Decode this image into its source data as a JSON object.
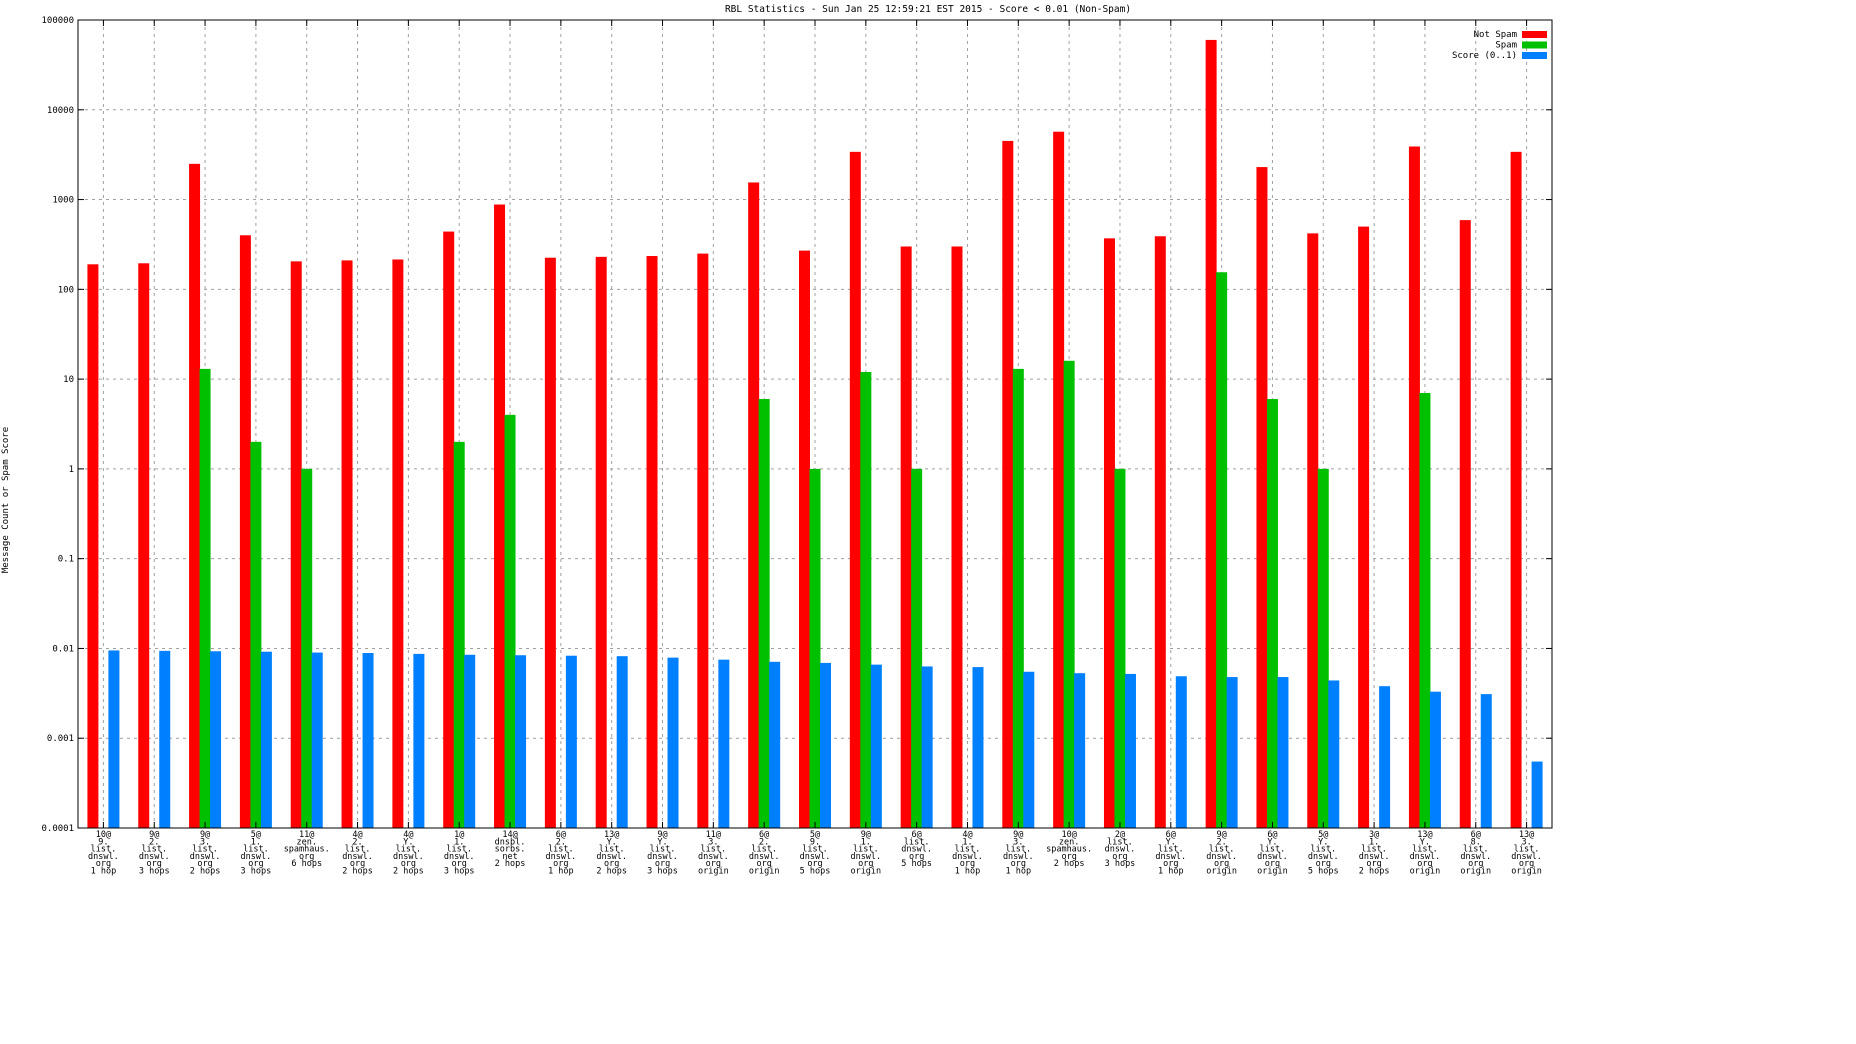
{
  "chart_data": {
    "type": "bar",
    "title": "RBL Statistics - Sun Jan 25 12:59:21 EST 2015 - Score < 0.01 (Non-Spam)",
    "xlabel": "",
    "ylabel": "Message Count or Spam Score",
    "yscale": "log",
    "ylim": [
      0.0001,
      100000
    ],
    "yticks": [
      "0.0001",
      "0.001",
      "0.01",
      "0.1",
      "1",
      "10",
      "100",
      "1000",
      "10000",
      "100000"
    ],
    "grid": true,
    "legend_position": "top-right",
    "colors": {
      "not_spam": "#ff0000",
      "spam": "#00c000",
      "score": "#0080ff"
    },
    "categories": [
      [
        "10@",
        "9.",
        "list.",
        "dnswl.",
        "org",
        "1 hop"
      ],
      [
        "9@",
        "2.",
        "list.",
        "dnswl.",
        "org",
        "3 hops"
      ],
      [
        "9@",
        "3.",
        "list.",
        "dnswl.",
        "org",
        "2 hops"
      ],
      [
        "5@",
        "1.",
        "list.",
        "dnswl.",
        "org",
        "3 hops"
      ],
      [
        "11@",
        "zen.",
        "spamhaus.",
        "org",
        "6 hops"
      ],
      [
        "4@",
        "2.",
        "list.",
        "dnswl.",
        "org",
        "2 hops"
      ],
      [
        "4@",
        "Y.",
        "list.",
        "dnswl.",
        "org",
        "2 hops"
      ],
      [
        "1@",
        "1.",
        "list.",
        "dnswl.",
        "org",
        "3 hops"
      ],
      [
        "14@",
        "dnsbl.",
        "sorbs.",
        "net",
        "2 hops"
      ],
      [
        "6@",
        "2.",
        "list.",
        "dnswl.",
        "org",
        "1 hop"
      ],
      [
        "13@",
        "Y.",
        "list.",
        "dnswl.",
        "org",
        "2 hops"
      ],
      [
        "9@",
        "Y.",
        "list.",
        "dnswl.",
        "org",
        "3 hops"
      ],
      [
        "11@",
        "3.",
        "list.",
        "dnswl.",
        "org",
        "origin"
      ],
      [
        "6@",
        "2.",
        "list.",
        "dnswl.",
        "org",
        "origin"
      ],
      [
        "5@",
        "9.",
        "list.",
        "dnswl.",
        "org",
        "5 hops"
      ],
      [
        "9@",
        "1.",
        "list.",
        "dnswl.",
        "org",
        "origin"
      ],
      [
        "6@",
        "list.",
        "dnswl.",
        "org",
        "5 hops"
      ],
      [
        "4@",
        "1.",
        "list.",
        "dnswl.",
        "org",
        "1 hop"
      ],
      [
        "9@",
        "3.",
        "list.",
        "dnswl.",
        "org",
        "1 hop"
      ],
      [
        "10@",
        "zen.",
        "spamhaus.",
        "org",
        "2 hops"
      ],
      [
        "2@",
        "list.",
        "dnswl.",
        "org",
        "3 hops"
      ],
      [
        "6@",
        "Y.",
        "list.",
        "dnswl.",
        "org",
        "1 hop"
      ],
      [
        "9@",
        "2.",
        "list.",
        "dnswl.",
        "org",
        "origin"
      ],
      [
        "6@",
        "Y.",
        "list.",
        "dnswl.",
        "org",
        "origin"
      ],
      [
        "5@",
        "Y.",
        "list.",
        "dnswl.",
        "org",
        "5 hops"
      ],
      [
        "3@",
        "1.",
        "list.",
        "dnswl.",
        "org",
        "2 hops"
      ],
      [
        "13@",
        "Y.",
        "list.",
        "dnswl.",
        "org",
        "origin"
      ],
      [
        "6@",
        "8.",
        "list.",
        "dnswl.",
        "org",
        "origin"
      ],
      [
        "13@",
        "3.",
        "list.",
        "dnswl.",
        "org",
        "origin"
      ]
    ],
    "series": [
      {
        "name": "Not Spam",
        "key": "not_spam",
        "values": [
          190,
          195,
          2500,
          400,
          205,
          210,
          215,
          440,
          880,
          225,
          230,
          235,
          250,
          1550,
          270,
          3400,
          300,
          300,
          4500,
          5700,
          370,
          390,
          60000,
          2300,
          420,
          500,
          3900,
          590,
          3400
        ]
      },
      {
        "name": "Spam",
        "key": "spam",
        "values": [
          null,
          null,
          13,
          2,
          1,
          null,
          null,
          2,
          4,
          null,
          null,
          null,
          null,
          6,
          1,
          12,
          1,
          null,
          13,
          16,
          1,
          null,
          155,
          6,
          1,
          null,
          7,
          null,
          null
        ]
      },
      {
        "name": "Score (0..1)",
        "key": "score",
        "values": [
          0.0095,
          0.0094,
          0.0093,
          0.0092,
          0.009,
          0.0089,
          0.0087,
          0.0085,
          0.0084,
          0.0083,
          0.0082,
          0.0079,
          0.0075,
          0.0071,
          0.0069,
          0.0066,
          0.0063,
          0.0062,
          0.0055,
          0.0053,
          0.0052,
          0.0049,
          0.0048,
          0.0048,
          0.0044,
          0.0038,
          0.0033,
          0.0031,
          0.00055
        ]
      }
    ]
  }
}
